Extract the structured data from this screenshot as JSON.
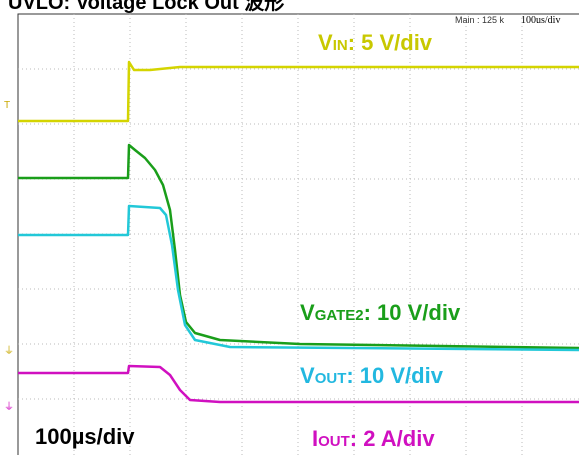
{
  "title": "UVLO: Voltage Lock Out 波形",
  "header": {
    "main": "Main : 125 k",
    "timebase": "100us/div"
  },
  "labels": {
    "vin": {
      "main": "V",
      "sub": "IN",
      "rest": ": 5 V/div"
    },
    "vgate": {
      "main": "V",
      "sub": "GATE2",
      "rest": ": 10 V/div"
    },
    "vout": {
      "main": "V",
      "sub": "OUT",
      "rest": ": 10 V/div"
    },
    "iout": {
      "main": "I",
      "sub": "OUT",
      "rest": ": 2 A/div"
    },
    "time": "100µs/div"
  }
}
